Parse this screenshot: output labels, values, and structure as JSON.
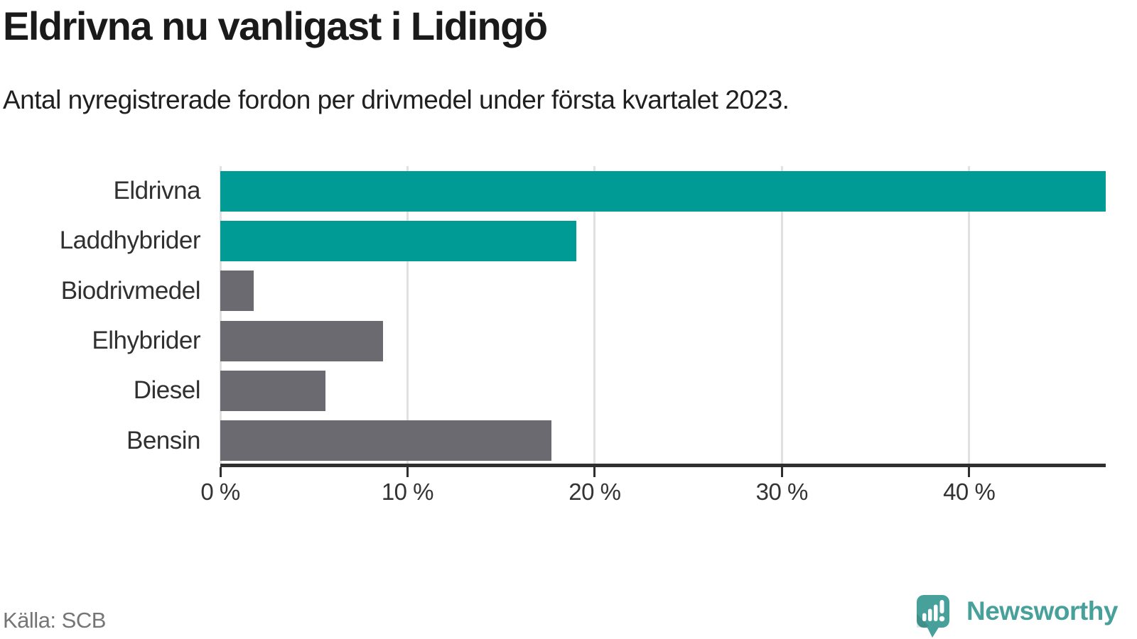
{
  "header": {
    "title": "Eldrivna nu vanligast i Lidingö",
    "subtitle": "Antal nyregistrerade fordon per drivmedel under första kvartalet 2023."
  },
  "footer": {
    "source": "Källa: SCB",
    "brand": "Newsworthy"
  },
  "palette": {
    "teal": "#009b94",
    "gray": "#6b6a71",
    "brand_teal": "#47a19a",
    "grid": "#e1e1e1",
    "axis": "#2f2f2f",
    "title_text": "#1a1a1a",
    "label_text": "#303030",
    "source_text": "#757575"
  },
  "chart_data": {
    "type": "bar",
    "orientation": "horizontal",
    "title": "Eldrivna nu vanligast i Lidingö",
    "subtitle": "Antal nyregistrerade fordon per drivmedel under första kvartalet 2023.",
    "categories": [
      "Eldrivna",
      "Laddhybrider",
      "Biodrivmedel",
      "Elhybrider",
      "Diesel",
      "Bensin"
    ],
    "values": [
      47.3,
      19.0,
      1.8,
      8.7,
      5.6,
      17.7
    ],
    "unit": "%",
    "bar_colors": [
      "teal",
      "teal",
      "gray",
      "gray",
      "gray",
      "gray"
    ],
    "xlim": [
      0,
      47.3
    ],
    "xticks": [
      0,
      10,
      20,
      30,
      40
    ],
    "xtick_labels": [
      "0 %",
      "10 %",
      "20 %",
      "30 %",
      "40 %"
    ],
    "grid": true,
    "value_labels": false,
    "legend": false,
    "source": "Källa: SCB"
  }
}
